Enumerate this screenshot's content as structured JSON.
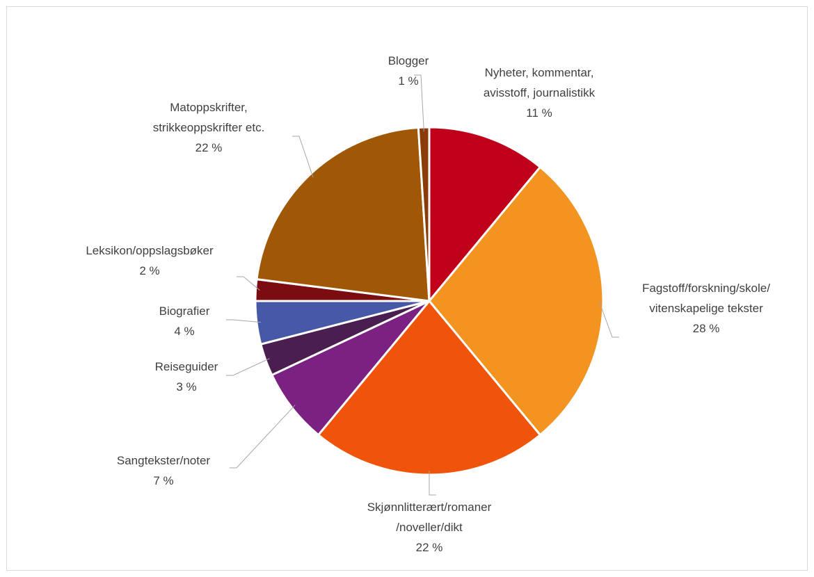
{
  "chart_data": {
    "type": "pie",
    "categories": [
      "Nyheter, kommentar,\navisstoff, journalistikk",
      "Fagstoff/forskning/skole/\nvitenskapelige tekster",
      "Skjønnlitterært/romaner\n/noveller/dikt",
      "Sangtekster/noter",
      "Reiseguider",
      "Biografier",
      "Leksikon/oppslagsbøker",
      "Matoppskrifter,\nstrikkeoppskrifter etc.",
      "Blogger"
    ],
    "values": [
      11,
      28,
      22,
      7,
      3,
      4,
      2,
      22,
      1
    ],
    "value_labels": [
      "11 %",
      "28 %",
      "22 %",
      "7 %",
      "3 %",
      "4 %",
      "2 %",
      "22 %",
      "1 %"
    ],
    "colors": [
      "#c0001a",
      "#f39320",
      "#f0540a",
      "#7a2182",
      "#4a1e4e",
      "#4658a6",
      "#7a0c12",
      "#a05706",
      "#8b3a0a"
    ]
  }
}
